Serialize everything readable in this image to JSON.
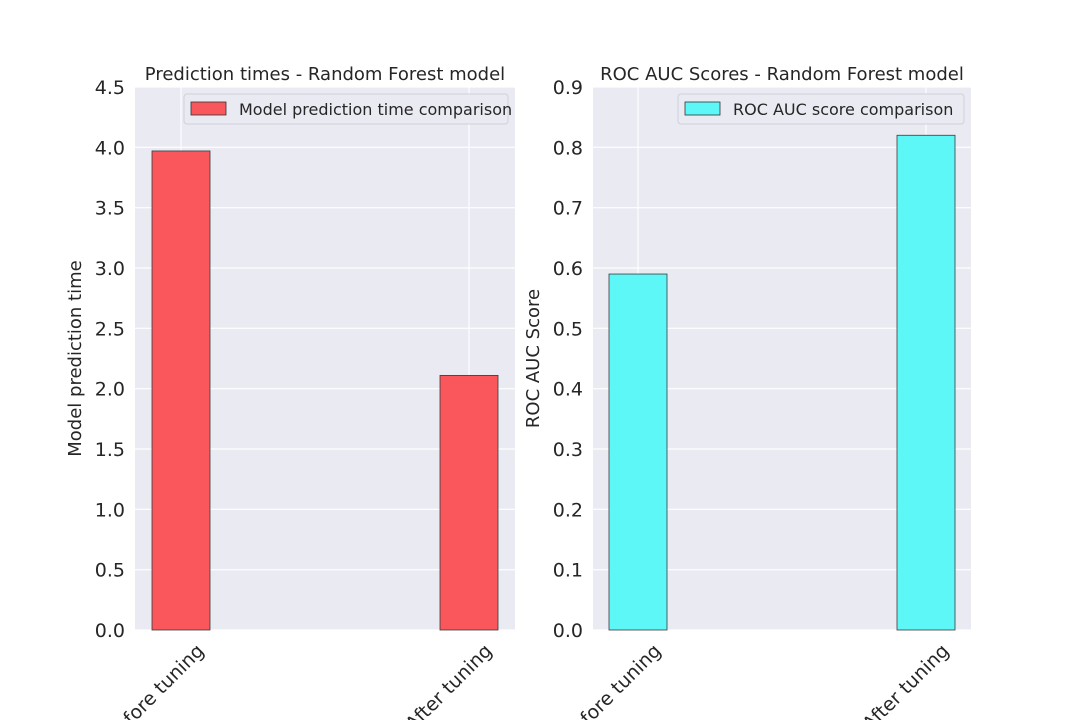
{
  "chart_data": [
    {
      "type": "bar",
      "title": "Prediction times - Random Forest model",
      "ylabel": "Model prediction time",
      "xlabel": "",
      "categories": [
        "Before tuning",
        "After tuning"
      ],
      "ylim": [
        0,
        4.5
      ],
      "yticks": [
        0.0,
        0.5,
        1.0,
        1.5,
        2.0,
        2.5,
        3.0,
        3.5,
        4.0,
        4.5
      ],
      "series": [
        {
          "name": "Model prediction time comparison",
          "values": [
            3.97,
            2.11
          ],
          "color": "#f9575c"
        }
      ],
      "grid": true,
      "legend": "top-right"
    },
    {
      "type": "bar",
      "title": "ROC AUC Scores - Random Forest model",
      "ylabel": "ROC AUC Score",
      "xlabel": "",
      "categories": [
        "Before tuning",
        "After tuning"
      ],
      "ylim": [
        0,
        0.9
      ],
      "yticks": [
        0.0,
        0.1,
        0.2,
        0.3,
        0.4,
        0.5,
        0.6,
        0.7,
        0.8,
        0.9
      ],
      "series": [
        {
          "name": "ROC AUC score comparison",
          "values": [
            0.59,
            0.82
          ],
          "color": "#5ef7f7"
        }
      ],
      "grid": true,
      "legend": "top-right"
    }
  ]
}
